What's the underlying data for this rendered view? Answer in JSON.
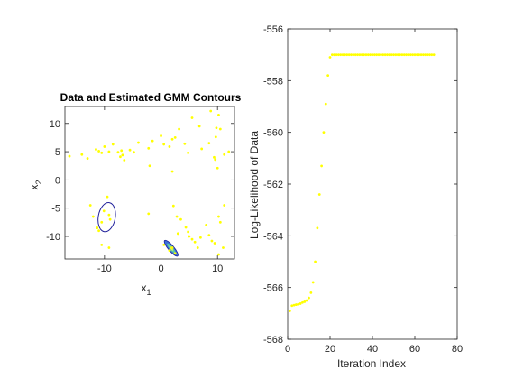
{
  "colors": {
    "data_points": "#ffff00",
    "axes": "#262626",
    "ellipse_outline": "#1f1f9a",
    "ellipse_fill_outer": "#3b6fd6",
    "ellipse_fill_inner": "#5cc9a7",
    "ellipse_core": "#e8f04a"
  },
  "chart_data": [
    {
      "type": "scatter",
      "title": "Data and Estimated GMM Contours",
      "xlabel": "x",
      "xlabel_sub": "1",
      "ylabel": "x",
      "ylabel_sub": "2",
      "xlim": [
        -17,
        13
      ],
      "ylim": [
        -14,
        13
      ],
      "xticks": [
        -10,
        0,
        10
      ],
      "xtick_labels": [
        "-10",
        "0",
        "10"
      ],
      "yticks": [
        -10,
        -5,
        0,
        5,
        10
      ],
      "ytick_labels": [
        "-10",
        "-5",
        "0",
        "5",
        "10"
      ],
      "grid": false,
      "series": [
        {
          "points": [
            [
              -16.2,
              4.2
            ],
            [
              -14,
              4.5
            ],
            [
              -13,
              3.8
            ],
            [
              -11.5,
              5.4
            ],
            [
              -11,
              5.1
            ],
            [
              -10.5,
              4.8
            ],
            [
              -10,
              5.9
            ],
            [
              -9.2,
              5
            ],
            [
              -8.5,
              6.3
            ],
            [
              -7.6,
              4.9
            ],
            [
              -7.2,
              4.1
            ],
            [
              -7,
              5.2
            ],
            [
              -6.8,
              4.4
            ],
            [
              -6.5,
              3.5
            ],
            [
              -5.5,
              5.3
            ],
            [
              -4.8,
              4.9
            ],
            [
              -4,
              6.6
            ],
            [
              -2.2,
              5.6
            ],
            [
              -1.5,
              6.9
            ],
            [
              0,
              7.8
            ],
            [
              0.5,
              6.3
            ],
            [
              1.5,
              5.9
            ],
            [
              2,
              7.2
            ],
            [
              2.5,
              7.5
            ],
            [
              3.2,
              9
            ],
            [
              4.2,
              6.4
            ],
            [
              4.8,
              4.8
            ],
            [
              5.5,
              11
            ],
            [
              6.8,
              9.5
            ],
            [
              7.2,
              5.5
            ],
            [
              8.5,
              6.5
            ],
            [
              8.8,
              12.2
            ],
            [
              9.4,
              4
            ],
            [
              9.6,
              3.6
            ],
            [
              9.7,
              7.6
            ],
            [
              9.8,
              9.2
            ],
            [
              10,
              2.1
            ],
            [
              10.2,
              11.5
            ],
            [
              10.5,
              9
            ],
            [
              11.2,
              4.5
            ],
            [
              12,
              5
            ],
            [
              -2,
              2.5
            ],
            [
              2,
              1.5
            ],
            [
              -12.5,
              -4.5
            ],
            [
              -12,
              -6.5
            ],
            [
              -11.3,
              -8.5
            ],
            [
              -11,
              -9
            ],
            [
              -10.5,
              -7.5
            ],
            [
              -10.1,
              -5.5
            ],
            [
              -9.5,
              -3
            ],
            [
              -9.2,
              -6.2
            ],
            [
              -9,
              -7
            ],
            [
              -9.2,
              -12
            ],
            [
              -10.5,
              -11.5
            ],
            [
              -2.2,
              -6
            ],
            [
              0.5,
              -11.5
            ],
            [
              1.5,
              -12.5
            ],
            [
              2,
              -12
            ],
            [
              2.5,
              -13
            ],
            [
              3,
              -9.5
            ],
            [
              2.2,
              -4.6
            ],
            [
              2.8,
              -6.5
            ],
            [
              3.5,
              -7
            ],
            [
              4.4,
              -8.4
            ],
            [
              4.8,
              -9.2
            ],
            [
              5,
              -10
            ],
            [
              5.5,
              -10.5
            ],
            [
              6,
              -11
            ],
            [
              6.5,
              -12
            ],
            [
              7,
              -10.2
            ],
            [
              8,
              -8
            ],
            [
              8.5,
              -9.8
            ],
            [
              9,
              -10.8
            ],
            [
              9.5,
              -11.2
            ],
            [
              10.5,
              -7.5
            ],
            [
              10.2,
              -6.5
            ],
            [
              11.2,
              -4.5
            ],
            [
              11,
              -12
            ],
            [
              10.2,
              -13.2
            ]
          ]
        }
      ],
      "ellipses": [
        {
          "cx": -9.6,
          "cy": -6.6,
          "rx": 1.5,
          "ry": 2.6,
          "angle": 10,
          "filled": false
        },
        {
          "cx": 1.8,
          "cy": -12.1,
          "rx": 0.5,
          "ry": 1.8,
          "angle": -40,
          "filled": true
        }
      ]
    },
    {
      "type": "scatter",
      "title": "",
      "xlabel": "Iteration Index",
      "ylabel": "Log-Likelihood of Data",
      "xlim": [
        0,
        80
      ],
      "ylim": [
        -568,
        -556
      ],
      "xticks": [
        0,
        20,
        40,
        60,
        80
      ],
      "xtick_labels": [
        "0",
        "20",
        "40",
        "60",
        "80"
      ],
      "yticks": [
        -568,
        -566,
        -564,
        -562,
        -560,
        -558,
        -556
      ],
      "ytick_labels": [
        "-568",
        "-566",
        "-564",
        "-562",
        "-560",
        "-558",
        "-556"
      ],
      "grid": false,
      "series": [
        {
          "x": [
            1,
            2,
            3,
            4,
            5,
            6,
            7,
            8,
            9,
            10,
            11,
            12,
            13,
            14,
            15,
            16,
            17,
            18,
            19,
            20,
            21,
            22,
            23,
            24,
            25,
            26,
            27,
            28,
            29,
            30,
            31,
            32,
            33,
            34,
            35,
            36,
            37,
            38,
            39,
            40,
            41,
            42,
            43,
            44,
            45,
            46,
            47,
            48,
            49,
            50,
            51,
            52,
            53,
            54,
            55,
            56,
            57,
            58,
            59,
            60,
            61,
            62,
            63,
            64,
            65,
            66,
            67,
            68,
            69
          ],
          "values": [
            -566.9,
            -566.7,
            -566.68,
            -566.66,
            -566.65,
            -566.62,
            -566.58,
            -566.55,
            -566.5,
            -566.4,
            -566.2,
            -565.8,
            -565,
            -563.7,
            -562.4,
            -561.3,
            -560,
            -558.9,
            -557.8,
            -557.1,
            -557,
            -557,
            -557,
            -557,
            -557,
            -557,
            -557,
            -557,
            -557,
            -557,
            -557,
            -557,
            -557,
            -557,
            -557,
            -557,
            -557,
            -557,
            -557,
            -557,
            -557,
            -557,
            -557,
            -557,
            -557,
            -557,
            -557,
            -557,
            -557,
            -557,
            -557,
            -557,
            -557,
            -557,
            -557,
            -557,
            -557,
            -557,
            -557,
            -557,
            -557,
            -557,
            -557,
            -557,
            -557,
            -557,
            -557,
            -557,
            -557
          ]
        }
      ]
    }
  ]
}
